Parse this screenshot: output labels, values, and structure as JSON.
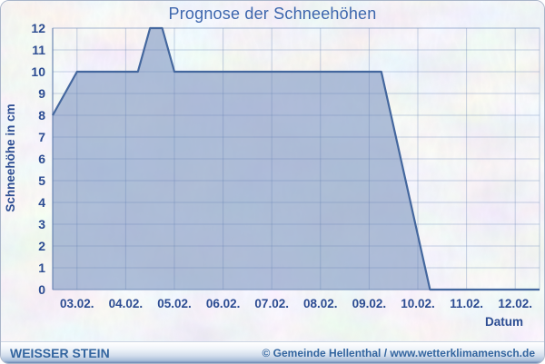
{
  "card": {
    "title": "Prognose der Schneehöhen",
    "footer": {
      "station": "WEISSER STEIN",
      "credit": "© Gemeinde Hellenthal / www.wetterklimamensch.de"
    }
  },
  "colors": {
    "title": "#3d66ad",
    "axis_text": "#2c4c92",
    "grid": "rgba(100,130,180,0.35)",
    "axis_line": "rgba(90,120,170,0.60)",
    "plot_border": "rgba(110,140,185,0.40)",
    "area_fill": "rgba(146,166,203,0.72)",
    "area_stroke": "#44679e",
    "footer_text": "#33659f",
    "background": "#ecedef"
  },
  "chart_data": {
    "type": "area",
    "title": "Prognose der Schneehöhen",
    "xlabel": "Datum",
    "ylabel": "Schneehöhe in cm",
    "xlim": [
      2.5,
      12.5
    ],
    "ylim": [
      0,
      12
    ],
    "grid": true,
    "legend": "none",
    "yticks": [
      0,
      1,
      2,
      3,
      4,
      5,
      6,
      7,
      8,
      9,
      10,
      11,
      12
    ],
    "xticks": [
      {
        "x": 3,
        "label": "03.02."
      },
      {
        "x": 4,
        "label": "04.02."
      },
      {
        "x": 5,
        "label": "05.02."
      },
      {
        "x": 6,
        "label": "06.02."
      },
      {
        "x": 7,
        "label": "07.02."
      },
      {
        "x": 8,
        "label": "08.02."
      },
      {
        "x": 9,
        "label": "09.02."
      },
      {
        "x": 10,
        "label": "10.02."
      },
      {
        "x": 11,
        "label": "11.02."
      },
      {
        "x": 12,
        "label": "12.02."
      }
    ],
    "series": [
      {
        "name": "Schneehöhe in cm",
        "points": [
          [
            2.5,
            8
          ],
          [
            3.0,
            10
          ],
          [
            4.25,
            10
          ],
          [
            4.5,
            12
          ],
          [
            4.75,
            12
          ],
          [
            5.0,
            10
          ],
          [
            9.25,
            10
          ],
          [
            9.75,
            5
          ],
          [
            10.0,
            2.5
          ],
          [
            10.25,
            0
          ],
          [
            12.5,
            0
          ]
        ]
      }
    ]
  }
}
